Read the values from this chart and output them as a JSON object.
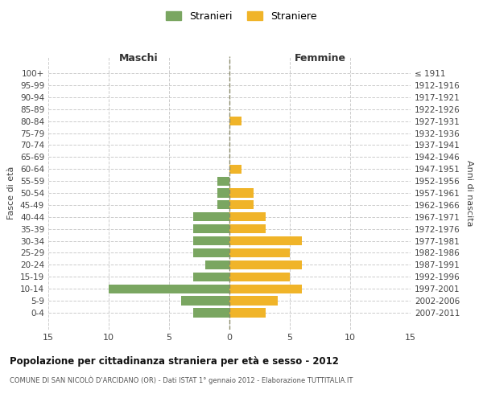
{
  "age_groups": [
    "100+",
    "95-99",
    "90-94",
    "85-89",
    "80-84",
    "75-79",
    "70-74",
    "65-69",
    "60-64",
    "55-59",
    "50-54",
    "45-49",
    "40-44",
    "35-39",
    "30-34",
    "25-29",
    "20-24",
    "15-19",
    "10-14",
    "5-9",
    "0-4"
  ],
  "birth_years": [
    "≤ 1911",
    "1912-1916",
    "1917-1921",
    "1922-1926",
    "1927-1931",
    "1932-1936",
    "1937-1941",
    "1942-1946",
    "1947-1951",
    "1952-1956",
    "1957-1961",
    "1962-1966",
    "1967-1971",
    "1972-1976",
    "1977-1981",
    "1982-1986",
    "1987-1991",
    "1992-1996",
    "1997-2001",
    "2002-2006",
    "2007-2011"
  ],
  "males": [
    0,
    0,
    0,
    0,
    0,
    0,
    0,
    0,
    0,
    1,
    1,
    1,
    3,
    3,
    3,
    3,
    2,
    3,
    10,
    4,
    3
  ],
  "females": [
    0,
    0,
    0,
    0,
    1,
    0,
    0,
    0,
    1,
    0,
    2,
    2,
    3,
    3,
    6,
    5,
    6,
    5,
    6,
    4,
    3
  ],
  "male_color": "#7aa661",
  "female_color": "#f0b429",
  "center_line_color": "#8b8b6b",
  "grid_color": "#cccccc",
  "bg_color": "#ffffff",
  "title": "Popolazione per cittadinanza straniera per età e sesso - 2012",
  "subtitle": "COMUNE DI SAN NICOLÒ D'ARCIDANO (OR) - Dati ISTAT 1° gennaio 2012 - Elaborazione TUTTITALIA.IT",
  "left_label": "Maschi",
  "right_label": "Femmine",
  "ylabel": "Fasce di età",
  "right_ylabel": "Anni di nascita",
  "legend_male": "Stranieri",
  "legend_female": "Straniere",
  "xlim": 15,
  "xticklabels": [
    "15",
    "10",
    "5",
    "0",
    "5",
    "10",
    "15"
  ]
}
